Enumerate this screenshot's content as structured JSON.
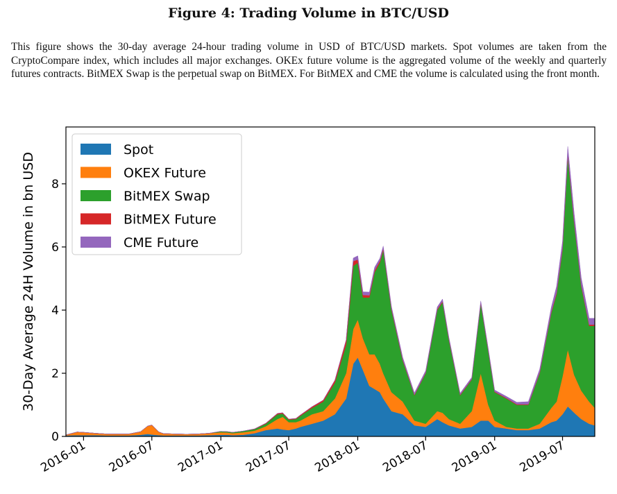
{
  "figure": {
    "title": "Figure 4: Trading Volume in BTC/USD",
    "caption": "This figure shows the 30-day average 24-hour trading volume in USD of BTC/USD markets. Spot volumes are taken from the CryptoCompare index, which includes all major exchanges. OKEx future volume is the aggregated volume of the weekly and quarterly futures contracts. BitMEX Swap is the perpetual swap on BitMEX. For BitMEX and CME the volume is calculated using the front month."
  },
  "chart_data": {
    "type": "area",
    "stacked": true,
    "title": "",
    "xlabel": "",
    "ylabel": "30-Day Average 24H Volume in bn USD",
    "x_ticks": [
      "2016-01",
      "2016-07",
      "2017-01",
      "2017-07",
      "2018-01",
      "2018-07",
      "2019-01",
      "2019-07"
    ],
    "y_ticks": [
      0,
      2,
      4,
      6,
      8
    ],
    "xlim": [
      "2015-11-15",
      "2019-09-25"
    ],
    "ylim": [
      0,
      9.8
    ],
    "grid": false,
    "legend_position": "top-left",
    "x": [
      "2015-11-15",
      "2015-12-15",
      "2016-01-01",
      "2016-02-01",
      "2016-03-01",
      "2016-04-01",
      "2016-05-01",
      "2016-06-01",
      "2016-06-20",
      "2016-07-01",
      "2016-07-20",
      "2016-08-01",
      "2016-09-01",
      "2016-10-01",
      "2016-11-01",
      "2016-12-01",
      "2017-01-01",
      "2017-01-20",
      "2017-02-01",
      "2017-03-01",
      "2017-04-01",
      "2017-05-01",
      "2017-06-01",
      "2017-06-15",
      "2017-07-01",
      "2017-07-20",
      "2017-08-01",
      "2017-09-01",
      "2017-10-01",
      "2017-11-01",
      "2017-12-01",
      "2017-12-20",
      "2018-01-01",
      "2018-01-15",
      "2018-02-01",
      "2018-02-15",
      "2018-03-01",
      "2018-03-10",
      "2018-04-01",
      "2018-05-01",
      "2018-06-01",
      "2018-07-01",
      "2018-08-01",
      "2018-08-15",
      "2018-09-01",
      "2018-10-01",
      "2018-11-01",
      "2018-11-25",
      "2018-12-15",
      "2019-01-01",
      "2019-02-01",
      "2019-03-01",
      "2019-04-01",
      "2019-05-01",
      "2019-06-01",
      "2019-06-15",
      "2019-07-01",
      "2019-07-15",
      "2019-08-01",
      "2019-08-20",
      "2019-09-10",
      "2019-09-25"
    ],
    "series": [
      {
        "name": "Spot",
        "color": "#1f77b4",
        "values": [
          0.03,
          0.04,
          0.04,
          0.04,
          0.03,
          0.03,
          0.03,
          0.05,
          0.08,
          0.06,
          0.04,
          0.03,
          0.03,
          0.03,
          0.03,
          0.04,
          0.05,
          0.05,
          0.04,
          0.05,
          0.1,
          0.2,
          0.25,
          0.22,
          0.2,
          0.25,
          0.3,
          0.4,
          0.5,
          0.7,
          1.2,
          2.3,
          2.5,
          2.1,
          1.6,
          1.5,
          1.4,
          1.2,
          0.8,
          0.7,
          0.35,
          0.3,
          0.55,
          0.45,
          0.35,
          0.25,
          0.3,
          0.5,
          0.5,
          0.3,
          0.25,
          0.2,
          0.2,
          0.25,
          0.45,
          0.5,
          0.7,
          0.95,
          0.75,
          0.55,
          0.4,
          0.35
        ]
      },
      {
        "name": "OKEX Future",
        "color": "#ff7f0e",
        "values": [
          0.02,
          0.1,
          0.09,
          0.06,
          0.05,
          0.05,
          0.05,
          0.1,
          0.25,
          0.3,
          0.1,
          0.06,
          0.05,
          0.04,
          0.05,
          0.06,
          0.08,
          0.07,
          0.06,
          0.08,
          0.08,
          0.12,
          0.3,
          0.4,
          0.25,
          0.2,
          0.2,
          0.3,
          0.3,
          0.5,
          0.8,
          1.1,
          1.2,
          1.0,
          1.0,
          1.1,
          0.9,
          0.8,
          0.6,
          0.4,
          0.15,
          0.1,
          0.25,
          0.3,
          0.2,
          0.15,
          0.5,
          1.5,
          0.5,
          0.2,
          0.05,
          0.05,
          0.05,
          0.15,
          0.45,
          0.6,
          1.2,
          1.8,
          1.2,
          0.9,
          0.7,
          0.55
        ]
      },
      {
        "name": "BitMEX Swap",
        "color": "#2ca02c",
        "values": [
          0,
          0,
          0,
          0,
          0,
          0,
          0,
          0,
          0,
          0,
          0,
          0,
          0,
          0,
          0,
          0,
          0.03,
          0.03,
          0.03,
          0.04,
          0.05,
          0.08,
          0.15,
          0.1,
          0.08,
          0.1,
          0.15,
          0.2,
          0.3,
          0.5,
          0.9,
          2.0,
          1.8,
          1.3,
          1.8,
          2.6,
          3.2,
          3.9,
          2.6,
          1.3,
          0.8,
          1.6,
          3.2,
          3.5,
          2.5,
          0.9,
          1.0,
          2.2,
          1.7,
          0.9,
          0.9,
          0.75,
          0.75,
          1.6,
          3.0,
          3.4,
          4.0,
          6.1,
          4.8,
          3.3,
          2.4,
          2.6
        ]
      },
      {
        "name": "BitMEX Future",
        "color": "#d62728",
        "values": [
          0,
          0,
          0,
          0,
          0,
          0,
          0,
          0,
          0,
          0,
          0,
          0,
          0,
          0,
          0,
          0,
          0,
          0,
          0,
          0,
          0.01,
          0.02,
          0.03,
          0.03,
          0.02,
          0.02,
          0.03,
          0.04,
          0.05,
          0.08,
          0.15,
          0.15,
          0.1,
          0.08,
          0.07,
          0.06,
          0.06,
          0.05,
          0.04,
          0.03,
          0.02,
          0.02,
          0.03,
          0.03,
          0.03,
          0.02,
          0.02,
          0.03,
          0.03,
          0.02,
          0.02,
          0.02,
          0.02,
          0.03,
          0.04,
          0.05,
          0.06,
          0.08,
          0.06,
          0.05,
          0.04,
          0.04
        ]
      },
      {
        "name": "CME Future",
        "color": "#9467bd",
        "values": [
          0,
          0,
          0,
          0,
          0,
          0,
          0,
          0,
          0,
          0,
          0,
          0,
          0,
          0,
          0,
          0,
          0,
          0,
          0,
          0,
          0,
          0,
          0,
          0,
          0,
          0,
          0,
          0,
          0,
          0,
          0,
          0.1,
          0.12,
          0.1,
          0.1,
          0.1,
          0.08,
          0.08,
          0.07,
          0.07,
          0.06,
          0.06,
          0.07,
          0.07,
          0.06,
          0.05,
          0.05,
          0.06,
          0.06,
          0.05,
          0.05,
          0.06,
          0.08,
          0.1,
          0.15,
          0.2,
          0.22,
          0.25,
          0.25,
          0.22,
          0.2,
          0.2
        ]
      }
    ]
  }
}
